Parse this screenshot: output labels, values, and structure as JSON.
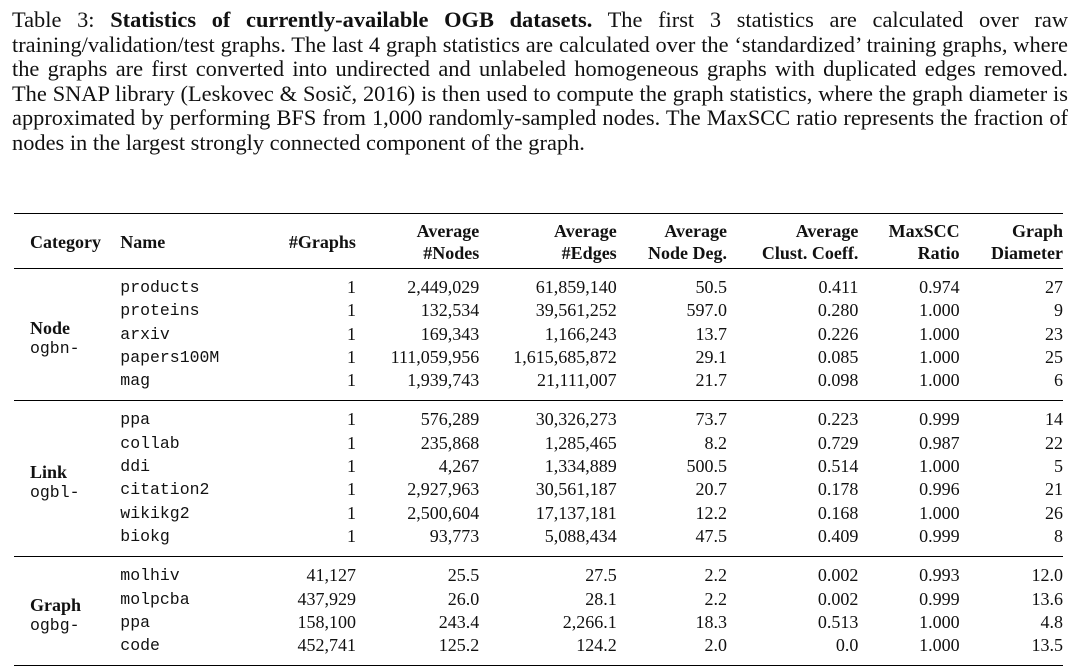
{
  "caption": {
    "label": "Table 3:",
    "title": "Statistics of currently-available OGB datasets.",
    "text": "The first 3 statistics are calculated over raw training/validation/test graphs. The last 4 graph statistics are calculated over the ‘standardized’ training graphs, where the graphs are first converted into undirected and unlabeled homogeneous graphs with duplicated edges removed. The SNAP library (Leskovec & Sosič, 2016) is then used to compute the graph statistics, where the graph diameter is approximated by performing BFS from 1,000 randomly-sampled nodes. The MaxSCC ratio represents the fraction of nodes in the largest strongly connected component of the graph."
  },
  "table": {
    "header": [
      [
        "Category"
      ],
      [
        "Name"
      ],
      [
        "#Graphs"
      ],
      [
        "Average",
        "#Nodes"
      ],
      [
        "Average",
        "#Edges"
      ],
      [
        "Average",
        "Node Deg."
      ],
      [
        "Average",
        "Clust. Coeff."
      ],
      [
        "MaxSCC",
        "Ratio"
      ],
      [
        "Graph",
        "Diameter"
      ]
    ],
    "groups": [
      {
        "category": "Node",
        "prefix": "ogbn-",
        "rows": [
          [
            "products",
            "1",
            "2,449,029",
            "61,859,140",
            "50.5",
            "0.411",
            "0.974",
            "27"
          ],
          [
            "proteins",
            "1",
            "132,534",
            "39,561,252",
            "597.0",
            "0.280",
            "1.000",
            "9"
          ],
          [
            "arxiv",
            "1",
            "169,343",
            "1,166,243",
            "13.7",
            "0.226",
            "1.000",
            "23"
          ],
          [
            "papers100M",
            "1",
            "111,059,956",
            "1,615,685,872",
            "29.1",
            "0.085",
            "1.000",
            "25"
          ],
          [
            "mag",
            "1",
            "1,939,743",
            "21,111,007",
            "21.7",
            "0.098",
            "1.000",
            "6"
          ]
        ]
      },
      {
        "category": "Link",
        "prefix": "ogbl-",
        "rows": [
          [
            "ppa",
            "1",
            "576,289",
            "30,326,273",
            "73.7",
            "0.223",
            "0.999",
            "14"
          ],
          [
            "collab",
            "1",
            "235,868",
            "1,285,465",
            "8.2",
            "0.729",
            "0.987",
            "22"
          ],
          [
            "ddi",
            "1",
            "4,267",
            "1,334,889",
            "500.5",
            "0.514",
            "1.000",
            "5"
          ],
          [
            "citation2",
            "1",
            "2,927,963",
            "30,561,187",
            "20.7",
            "0.178",
            "0.996",
            "21"
          ],
          [
            "wikikg2",
            "1",
            "2,500,604",
            "17,137,181",
            "12.2",
            "0.168",
            "1.000",
            "26"
          ],
          [
            "biokg",
            "1",
            "93,773",
            "5,088,434",
            "47.5",
            "0.409",
            "0.999",
            "8"
          ]
        ]
      },
      {
        "category": "Graph",
        "prefix": "ogbg-",
        "rows": [
          [
            "molhiv",
            "41,127",
            "25.5",
            "27.5",
            "2.2",
            "0.002",
            "0.993",
            "12.0"
          ],
          [
            "molpcba",
            "437,929",
            "26.0",
            "28.1",
            "2.2",
            "0.002",
            "0.999",
            "13.6"
          ],
          [
            "ppa",
            "158,100",
            "243.4",
            "2,266.1",
            "18.3",
            "0.513",
            "1.000",
            "4.8"
          ],
          [
            "code",
            "452,741",
            "125.2",
            "124.2",
            "2.0",
            "0.0",
            "1.000",
            "13.5"
          ]
        ]
      }
    ]
  }
}
